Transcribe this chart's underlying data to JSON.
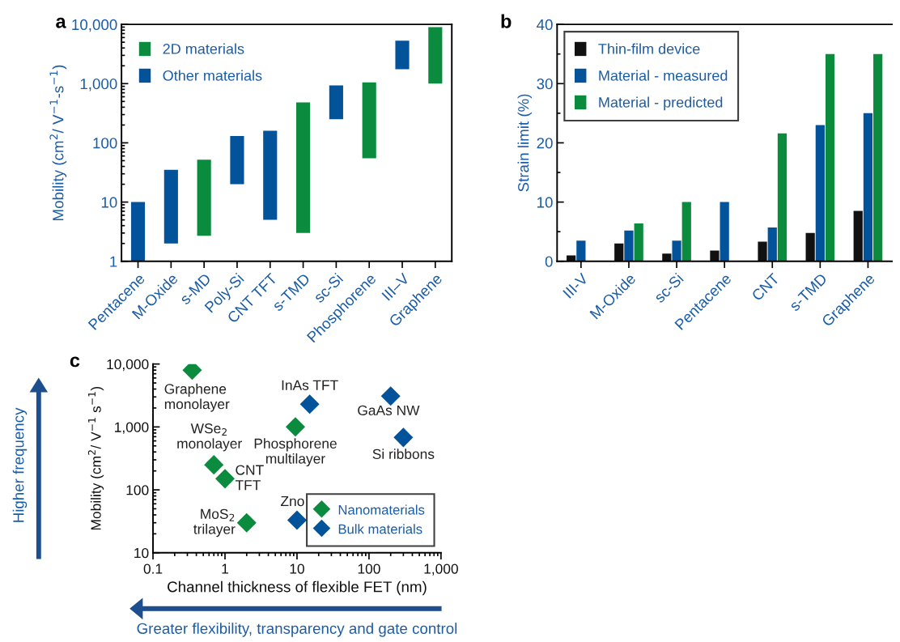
{
  "chart_data": [
    {
      "type": "bar",
      "title": "a",
      "ylabel": "Mobility (cm$^{2}$/ V$^{−1}$-s$^{−1}$)",
      "categories": [
        "Pentacene",
        "M-Oxide",
        "s-MD",
        "Poly-Si",
        "CNT TFT",
        "s-TMD",
        "sc-Si",
        "Phosphorene",
        "III–V",
        "Graphene"
      ],
      "series": [
        {
          "name": "2D materials",
          "color": "#0b8b3d",
          "base": [
            null,
            null,
            2.7,
            null,
            null,
            3,
            null,
            55,
            null,
            1000
          ],
          "values": [
            null,
            null,
            49.3,
            null,
            null,
            477,
            null,
            995,
            null,
            8000
          ]
        },
        {
          "name": "Other materials",
          "color": "#03539b",
          "base": [
            1,
            2,
            null,
            20,
            5,
            null,
            250,
            null,
            1750,
            null
          ],
          "values": [
            9,
            33,
            null,
            110,
            155,
            null,
            680,
            null,
            3550,
            null
          ]
        }
      ],
      "log": true,
      "ylim": [
        1,
        10000
      ],
      "yticks": [
        1,
        {
          "value": 2,
          "label": null
        },
        {
          "value": 3,
          "label": null
        },
        {
          "value": 4,
          "label": null
        },
        {
          "value": 5,
          "label": null
        },
        {
          "value": 6,
          "label": null
        },
        {
          "value": 7,
          "label": null
        },
        {
          "value": 8,
          "label": null
        },
        {
          "value": 9,
          "label": null
        },
        10,
        {
          "value": 20,
          "label": null
        },
        {
          "value": 30,
          "label": null
        },
        {
          "value": 40,
          "label": null
        },
        {
          "value": 50,
          "label": null
        },
        {
          "value": 60,
          "label": null
        },
        {
          "value": 70,
          "label": null
        },
        {
          "value": 80,
          "label": null
        },
        {
          "value": 90,
          "label": null
        },
        100,
        {
          "value": 200,
          "label": null
        },
        {
          "value": 300,
          "label": null
        },
        {
          "value": 400,
          "label": null
        },
        {
          "value": 500,
          "label": null
        },
        {
          "value": 600,
          "label": null
        },
        {
          "value": 700,
          "label": null
        },
        {
          "value": 800,
          "label": null
        },
        {
          "value": 900,
          "label": null
        },
        {
          "value": 1000,
          "label": "1,000"
        },
        {
          "value": 2000,
          "label": null
        },
        {
          "value": 3000,
          "label": null
        },
        {
          "value": 4000,
          "label": null
        },
        {
          "value": 5000,
          "label": null
        },
        {
          "value": 6000,
          "label": null
        },
        {
          "value": 7000,
          "label": null
        },
        {
          "value": 8000,
          "label": null
        },
        {
          "value": 9000,
          "label": null
        },
        {
          "value": 10000,
          "label": "10,000"
        }
      ],
      "legend": "top left"
    },
    {
      "type": "bar",
      "title": "b",
      "ylabel": "Strain limit (%)",
      "categories": [
        "III-V",
        "M-Oxide",
        "sc-Si",
        "Pentacene",
        "CNT",
        "s-TMD",
        "Graphene"
      ],
      "series": [
        {
          "name": "Thin-film device",
          "color": "#111111",
          "values": [
            1.0,
            3.0,
            1.3,
            1.8,
            3.3,
            4.8,
            8.5
          ]
        },
        {
          "name": "Material - measured",
          "color": "#03539b",
          "values": [
            3.5,
            5.2,
            3.5,
            10,
            5.7,
            23,
            25
          ]
        },
        {
          "name": "Material - predicted",
          "color": "#0b8b3d",
          "values": [
            null,
            6.4,
            10,
            null,
            21.6,
            35,
            35
          ]
        }
      ],
      "ylim": [
        0,
        40
      ],
      "yticks": [
        0,
        {
          "value": 5,
          "label": null
        },
        10,
        {
          "value": 15,
          "label": null
        },
        20,
        {
          "value": 25,
          "label": null
        },
        30,
        {
          "value": 35,
          "label": null
        },
        40
      ],
      "legend": "top left"
    },
    {
      "type": "scatter",
      "title": "c",
      "xlabel": "Channel thickness of flexible FET (nm)",
      "ylabel": "Mobility (cm$^{2}$/ V$^{−1}$ s$^{−1}$)",
      "series": [
        {
          "name": "Nanomaterials",
          "color": "#0b8b3d",
          "x": [
            0.35,
            0.7,
            1.0,
            9.5,
            2
          ],
          "values": [
            8000,
            250,
            150,
            1000,
            30
          ]
        },
        {
          "name": "Bulk materials",
          "color": "#03539b",
          "x": [
            15,
            200,
            300,
            10
          ],
          "values": [
            2300,
            3100,
            680,
            33
          ]
        }
      ],
      "log": "xy",
      "xlim": [
        0.1,
        1000
      ],
      "ylim": [
        10,
        10000
      ],
      "xticks": [
        0.1,
        {
          "value": 0.2,
          "label": null
        },
        {
          "value": 0.3,
          "label": null
        },
        {
          "value": 0.4,
          "label": null
        },
        {
          "value": 0.5,
          "label": null
        },
        {
          "value": 0.6,
          "label": null
        },
        {
          "value": 0.7,
          "label": null
        },
        {
          "value": 0.8,
          "label": null
        },
        {
          "value": 0.9,
          "label": null
        },
        1,
        {
          "value": 2,
          "label": null
        },
        {
          "value": 3,
          "label": null
        },
        {
          "value": 4,
          "label": null
        },
        {
          "value": 5,
          "label": null
        },
        {
          "value": 6,
          "label": null
        },
        {
          "value": 7,
          "label": null
        },
        {
          "value": 8,
          "label": null
        },
        {
          "value": 9,
          "label": null
        },
        10,
        {
          "value": 20,
          "label": null
        },
        {
          "value": 30,
          "label": null
        },
        {
          "value": 40,
          "label": null
        },
        {
          "value": 50,
          "label": null
        },
        {
          "value": 60,
          "label": null
        },
        {
          "value": 70,
          "label": null
        },
        {
          "value": 80,
          "label": null
        },
        {
          "value": 90,
          "label": null
        },
        100,
        {
          "value": 200,
          "label": null
        },
        {
          "value": 300,
          "label": null
        },
        {
          "value": 400,
          "label": null
        },
        {
          "value": 500,
          "label": null
        },
        {
          "value": 600,
          "label": null
        },
        {
          "value": 700,
          "label": null
        },
        {
          "value": 800,
          "label": null
        },
        {
          "value": 900,
          "label": null
        },
        {
          "value": 1000,
          "label": "1,000"
        }
      ],
      "yticks": [
        10,
        {
          "value": 20,
          "label": null
        },
        {
          "value": 30,
          "label": null
        },
        {
          "value": 40,
          "label": null
        },
        {
          "value": 50,
          "label": null
        },
        {
          "value": 60,
          "label": null
        },
        {
          "value": 70,
          "label": null
        },
        {
          "value": 80,
          "label": null
        },
        {
          "value": 90,
          "label": null
        },
        100,
        {
          "value": 200,
          "label": null
        },
        {
          "value": 300,
          "label": null
        },
        {
          "value": 400,
          "label": null
        },
        {
          "value": 500,
          "label": null
        },
        {
          "value": 600,
          "label": null
        },
        {
          "value": 700,
          "label": null
        },
        {
          "value": 800,
          "label": null
        },
        {
          "value": 900,
          "label": null
        },
        {
          "value": 1000,
          "label": "1,000"
        },
        {
          "value": 2000,
          "label": null
        },
        {
          "value": 3000,
          "label": null
        },
        {
          "value": 4000,
          "label": null
        },
        {
          "value": 5000,
          "label": null
        },
        {
          "value": 6000,
          "label": null
        },
        {
          "value": 7000,
          "label": null
        },
        {
          "value": 8000,
          "label": null
        },
        {
          "value": 9000,
          "label": null
        },
        {
          "value": 10000,
          "label": "10,000"
        }
      ],
      "marker": "diamond",
      "legend": "bottom right",
      "annotations": [
        {
          "text": "Graphene\nmonolayer",
          "x": 0.35,
          "y": 8000
        },
        {
          "text": "WSe$_{2}$\nmonolayer",
          "x": 0.7,
          "y": 250
        },
        {
          "text": "CNT\nTFT",
          "x": 1.0,
          "y": 150
        },
        {
          "text": "Phosphorene\nmultilayer",
          "x": 9.5,
          "y": 1000
        },
        {
          "text": "MoS$_{2}$\ntrilayer",
          "x": 2,
          "y": 30
        },
        {
          "text": "InAs TFT",
          "x": 15,
          "y": 2300
        },
        {
          "text": "GaAs NW",
          "x": 200,
          "y": 3100
        },
        {
          "text": "Si ribbons",
          "x": 300,
          "y": 680
        },
        {
          "text": "Zno",
          "x": 10,
          "y": 33
        },
        "Higher frequency",
        "Greater flexibility, transparency and gate control"
      ]
    }
  ]
}
